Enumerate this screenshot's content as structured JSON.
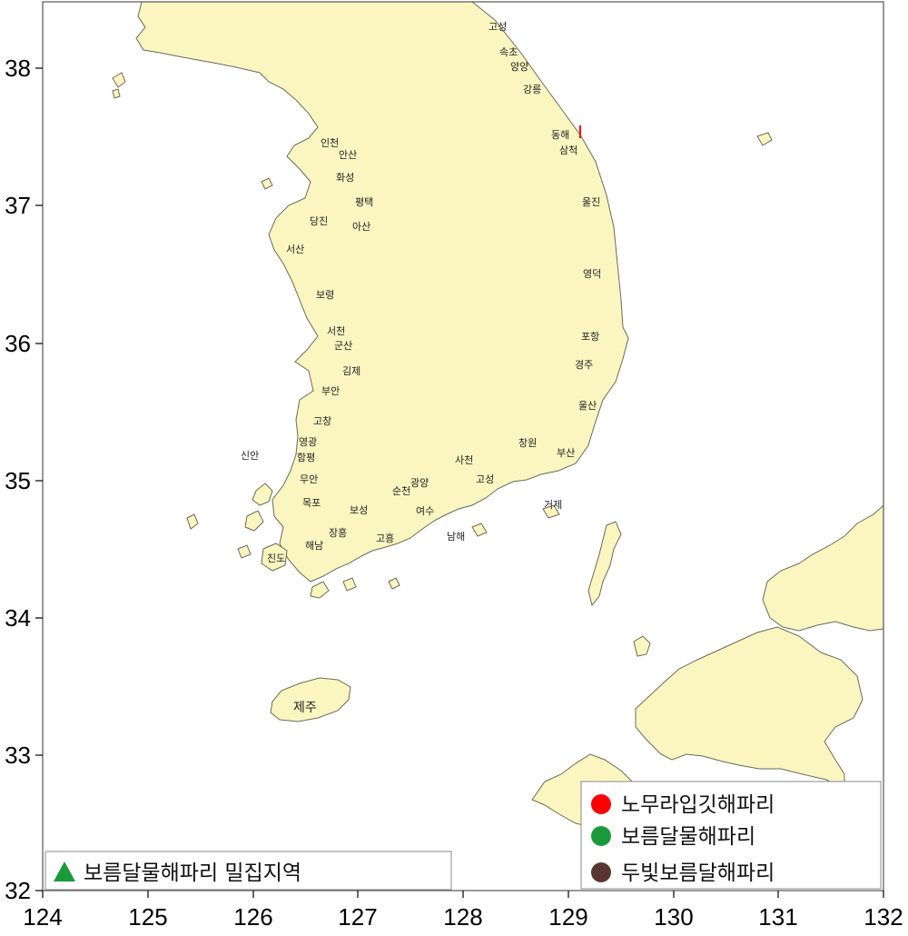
{
  "map": {
    "x_ticks": [
      "124",
      "125",
      "126",
      "127",
      "128",
      "129",
      "130",
      "131",
      "132"
    ],
    "y_ticks": [
      "38",
      "37",
      "36",
      "35",
      "34",
      "33",
      "32"
    ],
    "places": [
      {
        "id": "goseong-n",
        "name": "고성"
      },
      {
        "id": "sokcho",
        "name": "속초"
      },
      {
        "id": "yangyang",
        "name": "양양"
      },
      {
        "id": "gangneung",
        "name": "강릉"
      },
      {
        "id": "donghae",
        "name": "동해"
      },
      {
        "id": "samcheok",
        "name": "삼척"
      },
      {
        "id": "uljin",
        "name": "울진"
      },
      {
        "id": "yeongdeok",
        "name": "영덕"
      },
      {
        "id": "pohang",
        "name": "포항"
      },
      {
        "id": "gyeongju",
        "name": "경주"
      },
      {
        "id": "ulsan",
        "name": "울산"
      },
      {
        "id": "busan",
        "name": "부산"
      },
      {
        "id": "changwon",
        "name": "창원"
      },
      {
        "id": "geoje",
        "name": "거제"
      },
      {
        "id": "goseong-s",
        "name": "고성"
      },
      {
        "id": "sacheon",
        "name": "사천"
      },
      {
        "id": "namhae",
        "name": "남해"
      },
      {
        "id": "gwangyang",
        "name": "광양"
      },
      {
        "id": "yeosu",
        "name": "여수"
      },
      {
        "id": "suncheon",
        "name": "순천"
      },
      {
        "id": "goheung",
        "name": "고흥"
      },
      {
        "id": "boseong",
        "name": "보성"
      },
      {
        "id": "jangheung",
        "name": "장흥"
      },
      {
        "id": "haenam",
        "name": "해남"
      },
      {
        "id": "jindo",
        "name": "진도"
      },
      {
        "id": "mokpo",
        "name": "목포"
      },
      {
        "id": "muan",
        "name": "무안"
      },
      {
        "id": "sinan",
        "name": "신안"
      },
      {
        "id": "hampyeong",
        "name": "함평"
      },
      {
        "id": "yeonggwang",
        "name": "영광"
      },
      {
        "id": "gochang",
        "name": "고창"
      },
      {
        "id": "buan",
        "name": "부안"
      },
      {
        "id": "gimje",
        "name": "김제"
      },
      {
        "id": "gunsan",
        "name": "군산"
      },
      {
        "id": "seocheon",
        "name": "서천"
      },
      {
        "id": "boryeong",
        "name": "보령"
      },
      {
        "id": "seosan",
        "name": "서산"
      },
      {
        "id": "dangjin",
        "name": "당진"
      },
      {
        "id": "asan",
        "name": "아산"
      },
      {
        "id": "pyeongtaek",
        "name": "평택"
      },
      {
        "id": "hwaseong",
        "name": "화성"
      },
      {
        "id": "ansan",
        "name": "안산"
      },
      {
        "id": "incheon",
        "name": "인천"
      },
      {
        "id": "jeju",
        "name": "제주"
      }
    ]
  },
  "legend_species": {
    "items": [
      {
        "label": "노무라입깃해파리",
        "color": "#ff0000"
      },
      {
        "label": "보름달물해파리",
        "color": "#1a9a3a"
      },
      {
        "label": "두빛보름달해파리",
        "color": "#5a3530"
      }
    ]
  },
  "legend_area": {
    "label": "보름달물해파리 밀집지역",
    "color": "#1a9a3a"
  }
}
